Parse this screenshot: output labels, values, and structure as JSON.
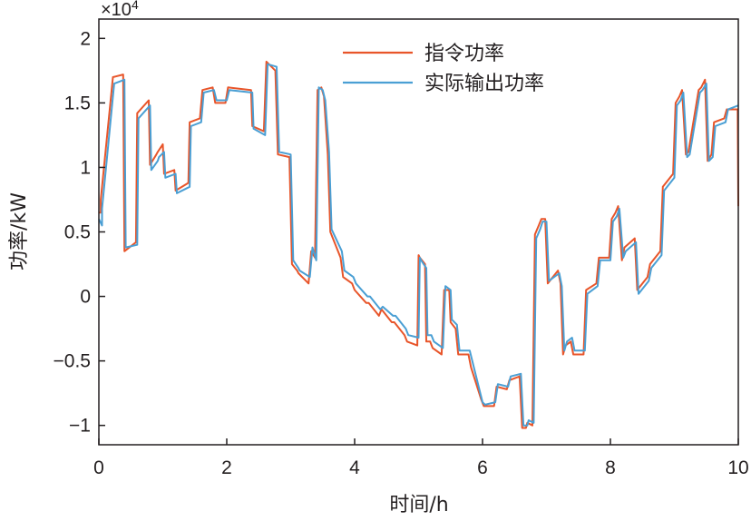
{
  "chart_data": {
    "type": "line",
    "xlabel": "时间/h",
    "ylabel": "功率/kW",
    "y_multiplier_base": "×10",
    "y_multiplier_exp": "4",
    "xlim": [
      0,
      10
    ],
    "ylim": [
      -1.15,
      2.15
    ],
    "x_ticks": [
      0,
      2,
      4,
      6,
      8,
      10
    ],
    "x_tick_labels": [
      "0",
      "2",
      "4",
      "6",
      "8",
      "10"
    ],
    "y_ticks": [
      2,
      1.5,
      1,
      0.5,
      0,
      -0.5,
      -1
    ],
    "y_tick_labels": [
      "2",
      "1.5",
      "1",
      "0.5",
      "0",
      "−0.5",
      "−1"
    ],
    "grid": false,
    "legend_position": "top-right",
    "series": [
      {
        "name": "指令功率",
        "color": "#e8552a",
        "x": [
          0,
          0.03,
          0.03,
          0.2,
          0.22,
          0.38,
          0.4,
          0.58,
          0.6,
          0.78,
          0.8,
          0.9,
          0.92,
          1.0,
          1.02,
          1.18,
          1.2,
          1.4,
          1.42,
          1.58,
          1.62,
          1.78,
          1.82,
          1.98,
          2.02,
          2.38,
          2.4,
          2.58,
          2.62,
          2.76,
          2.8,
          2.98,
          3.02,
          3.1,
          3.12,
          3.28,
          3.32,
          3.38,
          3.42,
          3.48,
          3.52,
          3.58,
          3.62,
          3.78,
          3.82,
          3.96,
          4.0,
          4.18,
          4.22,
          4.38,
          4.42,
          4.58,
          4.62,
          4.78,
          4.82,
          4.98,
          5.0,
          5.02,
          5.1,
          5.12,
          5.18,
          5.22,
          5.36,
          5.4,
          5.48,
          5.5,
          5.58,
          5.62,
          5.78,
          5.82,
          5.98,
          6.02,
          6.18,
          6.22,
          6.38,
          6.42,
          6.58,
          6.62,
          6.68,
          6.7,
          6.78,
          6.82,
          6.88,
          6.92,
          6.98,
          7.02,
          7.18,
          7.22,
          7.26,
          7.3,
          7.38,
          7.42,
          7.58,
          7.62,
          7.78,
          7.82,
          7.98,
          8.02,
          8.08,
          8.12,
          8.18,
          8.22,
          8.38,
          8.42,
          8.58,
          8.62,
          8.78,
          8.82,
          8.98,
          9.02,
          9.08,
          9.12,
          9.18,
          9.22,
          9.38,
          9.42,
          9.48,
          9.52,
          9.58,
          9.62,
          9.78,
          9.82,
          9.99,
          10.0
        ],
        "values": [
          0.65,
          0.65,
          0.75,
          1.6,
          1.7,
          1.72,
          0.35,
          0.42,
          1.42,
          1.52,
          1.02,
          1.1,
          1.12,
          1.18,
          0.95,
          0.98,
          0.82,
          0.88,
          1.35,
          1.38,
          1.6,
          1.62,
          1.5,
          1.5,
          1.62,
          1.6,
          1.32,
          1.28,
          1.82,
          1.75,
          1.1,
          1.08,
          0.25,
          0.2,
          0.18,
          0.1,
          0.35,
          0.3,
          1.6,
          1.62,
          1.55,
          1.1,
          0.5,
          0.3,
          0.15,
          0.1,
          0.05,
          -0.05,
          -0.05,
          -0.15,
          -0.1,
          -0.2,
          -0.2,
          -0.3,
          -0.35,
          -0.38,
          0.32,
          0.3,
          0.25,
          -0.35,
          -0.35,
          -0.4,
          -0.45,
          0.05,
          0.05,
          -0.2,
          -0.25,
          -0.45,
          -0.45,
          -0.55,
          -0.8,
          -0.85,
          -0.85,
          -0.7,
          -0.72,
          -0.65,
          -0.62,
          -1.02,
          -1.02,
          -0.98,
          -1.0,
          0.48,
          0.55,
          0.6,
          0.6,
          0.1,
          0.2,
          0.1,
          -0.45,
          -0.38,
          -0.35,
          -0.45,
          -0.45,
          0.05,
          0.1,
          0.3,
          0.3,
          0.6,
          0.65,
          0.7,
          0.28,
          0.38,
          0.45,
          0.05,
          0.15,
          0.25,
          0.35,
          0.85,
          0.95,
          1.5,
          1.55,
          1.6,
          1.1,
          1.12,
          1.6,
          1.62,
          1.68,
          1.05,
          1.1,
          1.35,
          1.38,
          1.45,
          1.45,
          0.7
        ]
      },
      {
        "name": "实际输出功率",
        "color": "#4a9fd4",
        "x": [
          0,
          0.05,
          0.05,
          0.22,
          0.24,
          0.4,
          0.42,
          0.6,
          0.62,
          0.8,
          0.82,
          0.92,
          0.94,
          1.02,
          1.04,
          1.2,
          1.22,
          1.42,
          1.44,
          1.6,
          1.64,
          1.8,
          1.84,
          2.0,
          2.04,
          2.4,
          2.42,
          2.6,
          2.64,
          2.78,
          2.82,
          3.0,
          3.04,
          3.12,
          3.14,
          3.3,
          3.34,
          3.4,
          3.44,
          3.5,
          3.54,
          3.6,
          3.64,
          3.8,
          3.84,
          3.98,
          4.02,
          4.2,
          4.24,
          4.4,
          4.44,
          4.6,
          4.64,
          4.8,
          4.84,
          5.0,
          5.02,
          5.04,
          5.12,
          5.14,
          5.2,
          5.24,
          5.38,
          5.42,
          5.5,
          5.52,
          5.6,
          5.64,
          5.8,
          5.84,
          6.0,
          6.04,
          6.2,
          6.24,
          6.4,
          6.44,
          6.6,
          6.64,
          6.7,
          6.72,
          6.8,
          6.84,
          6.9,
          6.94,
          7.0,
          7.04,
          7.2,
          7.24,
          7.28,
          7.32,
          7.4,
          7.44,
          7.6,
          7.64,
          7.8,
          7.84,
          8.0,
          8.04,
          8.1,
          8.14,
          8.2,
          8.24,
          8.4,
          8.44,
          8.6,
          8.64,
          8.8,
          8.84,
          9.0,
          9.04,
          9.1,
          9.14,
          9.2,
          9.24,
          9.4,
          9.44,
          9.5,
          9.54,
          9.6,
          9.64,
          9.8,
          9.84,
          10.0
        ],
        "values": [
          0.6,
          0.55,
          0.68,
          1.55,
          1.65,
          1.68,
          0.38,
          0.4,
          1.38,
          1.48,
          0.98,
          1.05,
          1.08,
          1.12,
          0.92,
          0.95,
          0.8,
          0.85,
          1.32,
          1.35,
          1.58,
          1.6,
          1.52,
          1.52,
          1.6,
          1.58,
          1.3,
          1.25,
          1.8,
          1.78,
          1.12,
          1.1,
          0.28,
          0.22,
          0.2,
          0.15,
          0.38,
          0.28,
          1.62,
          1.6,
          1.52,
          1.12,
          0.52,
          0.35,
          0.2,
          0.15,
          0.1,
          0.0,
          0.0,
          -0.1,
          -0.08,
          -0.15,
          -0.15,
          -0.25,
          -0.3,
          -0.32,
          0.3,
          0.28,
          0.22,
          -0.3,
          -0.3,
          -0.35,
          -0.4,
          0.08,
          0.05,
          -0.18,
          -0.22,
          -0.42,
          -0.42,
          -0.5,
          -0.82,
          -0.84,
          -0.82,
          -0.68,
          -0.7,
          -0.62,
          -0.6,
          -1.0,
          -1.0,
          -0.96,
          -0.98,
          0.45,
          0.52,
          0.58,
          0.58,
          0.12,
          0.18,
          0.08,
          -0.42,
          -0.35,
          -0.32,
          -0.42,
          -0.42,
          0.02,
          0.08,
          0.28,
          0.28,
          0.58,
          0.62,
          0.68,
          0.3,
          0.35,
          0.42,
          0.02,
          0.12,
          0.22,
          0.32,
          0.82,
          0.92,
          1.48,
          1.52,
          1.58,
          1.08,
          1.1,
          1.58,
          1.6,
          1.65,
          1.05,
          1.08,
          1.32,
          1.35,
          1.45,
          1.48
        ]
      }
    ]
  }
}
